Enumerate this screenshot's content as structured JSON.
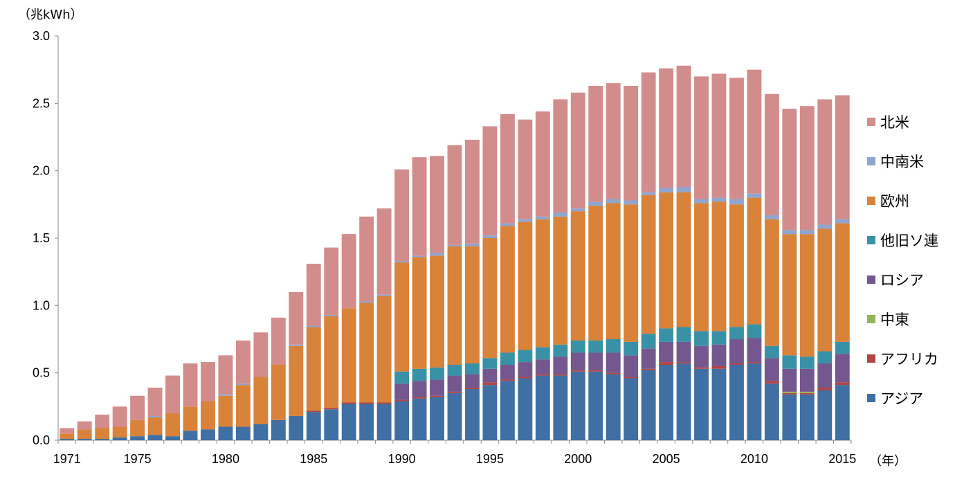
{
  "chart_data": {
    "type": "bar",
    "stacked": true,
    "y_unit_label": "（兆kWh）",
    "x_unit_label": "（年）",
    "ylim": [
      0,
      3.0
    ],
    "y_ticks": [
      "0.0",
      "0.5",
      "1.0",
      "1.5",
      "2.0",
      "2.5",
      "3.0"
    ],
    "x_tick_labels": [
      "1971",
      "1975",
      "1980",
      "1985",
      "1990",
      "1995",
      "2000",
      "2005",
      "2010",
      "2015"
    ],
    "grid": false,
    "legend_position": "right",
    "categories": [
      1971,
      1972,
      1973,
      1974,
      1975,
      1976,
      1977,
      1978,
      1979,
      1980,
      1981,
      1982,
      1983,
      1984,
      1985,
      1986,
      1987,
      1988,
      1989,
      1990,
      1991,
      1992,
      1993,
      1994,
      1995,
      1996,
      1997,
      1998,
      1999,
      2000,
      2001,
      2002,
      2003,
      2004,
      2005,
      2006,
      2007,
      2008,
      2009,
      2010,
      2011,
      2012,
      2013,
      2014,
      2015
    ],
    "series": [
      {
        "name": "アジア",
        "color": "#3f6fa3",
        "values": [
          0.01,
          0.01,
          0.01,
          0.02,
          0.03,
          0.04,
          0.03,
          0.07,
          0.08,
          0.1,
          0.1,
          0.12,
          0.15,
          0.18,
          0.21,
          0.23,
          0.27,
          0.27,
          0.27,
          0.29,
          0.31,
          0.32,
          0.35,
          0.38,
          0.41,
          0.44,
          0.46,
          0.48,
          0.48,
          0.51,
          0.51,
          0.49,
          0.46,
          0.52,
          0.56,
          0.57,
          0.53,
          0.53,
          0.56,
          0.57,
          0.42,
          0.34,
          0.34,
          0.37,
          0.41
        ]
      },
      {
        "name": "アフリカ",
        "color": "#b24442",
        "values": [
          0,
          0,
          0,
          0,
          0,
          0,
          0,
          0,
          0,
          0,
          0,
          0,
          0,
          0,
          0.01,
          0.01,
          0.01,
          0.01,
          0.01,
          0.01,
          0.01,
          0.01,
          0.01,
          0.01,
          0.02,
          0.01,
          0.01,
          0.01,
          0.01,
          0.01,
          0.01,
          0.01,
          0.01,
          0.01,
          0.02,
          0.01,
          0.01,
          0.02,
          0.01,
          0.01,
          0.02,
          0.01,
          0.01,
          0.02,
          0.02
        ]
      },
      {
        "name": "中東",
        "color": "#93b456",
        "values": [
          0,
          0,
          0,
          0,
          0,
          0,
          0,
          0,
          0,
          0,
          0,
          0,
          0,
          0,
          0,
          0,
          0,
          0,
          0,
          0,
          0,
          0,
          0,
          0,
          0,
          0,
          0,
          0,
          0,
          0,
          0,
          0,
          0,
          0,
          0,
          0,
          0,
          0,
          0,
          0,
          0,
          0.01,
          0.01,
          0,
          0
        ]
      },
      {
        "name": "ロシア",
        "color": "#73578e",
        "values": [
          0,
          0,
          0,
          0,
          0,
          0,
          0,
          0,
          0,
          0,
          0,
          0,
          0,
          0,
          0,
          0,
          0,
          0,
          0,
          0.12,
          0.12,
          0.12,
          0.12,
          0.1,
          0.1,
          0.11,
          0.11,
          0.11,
          0.13,
          0.13,
          0.13,
          0.15,
          0.16,
          0.15,
          0.15,
          0.15,
          0.16,
          0.16,
          0.18,
          0.18,
          0.17,
          0.17,
          0.17,
          0.18,
          0.21
        ]
      },
      {
        "name": "他旧ソ連",
        "color": "#3891a6",
        "values": [
          0,
          0,
          0,
          0,
          0,
          0,
          0,
          0,
          0,
          0,
          0,
          0,
          0,
          0,
          0,
          0,
          0,
          0,
          0,
          0.09,
          0.09,
          0.09,
          0.08,
          0.08,
          0.08,
          0.09,
          0.09,
          0.09,
          0.09,
          0.09,
          0.09,
          0.1,
          0.1,
          0.11,
          0.1,
          0.11,
          0.11,
          0.1,
          0.09,
          0.1,
          0.09,
          0.1,
          0.09,
          0.09,
          0.09
        ]
      },
      {
        "name": "欧州",
        "color": "#d8823a",
        "values": [
          0.04,
          0.07,
          0.08,
          0.08,
          0.12,
          0.13,
          0.17,
          0.18,
          0.21,
          0.23,
          0.31,
          0.35,
          0.41,
          0.52,
          0.62,
          0.68,
          0.7,
          0.74,
          0.79,
          0.81,
          0.83,
          0.83,
          0.88,
          0.87,
          0.89,
          0.94,
          0.95,
          0.95,
          0.95,
          0.96,
          1.0,
          1.01,
          1.02,
          1.03,
          1.01,
          1.0,
          0.95,
          0.96,
          0.91,
          0.94,
          0.94,
          0.9,
          0.91,
          0.91,
          0.88
        ]
      },
      {
        "name": "中南米",
        "color": "#8fa5cf",
        "values": [
          0,
          0,
          0,
          0,
          0,
          0.01,
          0,
          0,
          0,
          0.01,
          0.01,
          0,
          0,
          0.01,
          0.01,
          0.01,
          0,
          0.01,
          0.01,
          0.01,
          0.01,
          0.02,
          0.01,
          0.02,
          0.02,
          0.02,
          0.02,
          0.02,
          0.03,
          0.02,
          0.03,
          0.03,
          0.03,
          0.02,
          0.03,
          0.04,
          0.03,
          0.03,
          0.04,
          0.03,
          0.03,
          0.03,
          0.03,
          0.03,
          0.03
        ]
      },
      {
        "name": "北米",
        "color": "#d38c8c",
        "values": [
          0.04,
          0.06,
          0.1,
          0.15,
          0.18,
          0.21,
          0.28,
          0.32,
          0.29,
          0.29,
          0.32,
          0.33,
          0.35,
          0.39,
          0.46,
          0.5,
          0.55,
          0.63,
          0.64,
          0.68,
          0.73,
          0.72,
          0.74,
          0.77,
          0.81,
          0.81,
          0.74,
          0.78,
          0.84,
          0.86,
          0.86,
          0.86,
          0.85,
          0.89,
          0.89,
          0.9,
          0.91,
          0.92,
          0.9,
          0.92,
          0.9,
          0.9,
          0.92,
          0.93,
          0.92
        ]
      }
    ]
  }
}
